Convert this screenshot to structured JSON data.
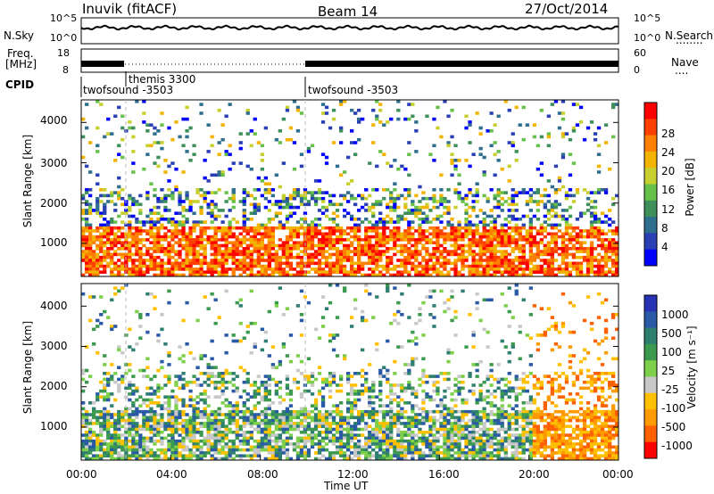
{
  "header": {
    "station": "Inuvik (fitACF)",
    "beam": "Beam 14",
    "date": "27/Oct/2014"
  },
  "nsky_panel": {
    "left_label": "N.Sky",
    "left_ticks": [
      "10^5",
      "10^0"
    ],
    "right_ticks": [
      "10^5",
      "10^0"
    ],
    "right_label": "N.Search",
    "right_legend": "........"
  },
  "freq_panel": {
    "left_label_1": "Freq.",
    "left_label_2": "[MHz]",
    "left_ticks": [
      "18",
      "8"
    ],
    "right_ticks": [
      "60",
      "0"
    ],
    "right_label": "Nave",
    "right_legend": "...."
  },
  "cpid_panel": {
    "label": "CPID",
    "entries": [
      {
        "text": "twofsound -3503",
        "start": "00:00"
      },
      {
        "text": "themis 3300",
        "start": "02:00"
      },
      {
        "text": "twofsound -3503",
        "start": "10:00"
      }
    ]
  },
  "chart_data": [
    {
      "type": "heatmap",
      "name": "power",
      "ylabel": "Slant Range [km]",
      "ylim": [
        180,
        4560
      ],
      "yticks": [
        "1000",
        "2000",
        "3000",
        "4000"
      ],
      "xlim_hours": [
        0,
        24
      ],
      "colorbar": {
        "label": "Power [dB]",
        "ticks": [
          "28",
          "24",
          "20",
          "16",
          "12",
          "8",
          "4"
        ],
        "colors": [
          "#0000ff",
          "#2a3fb4",
          "#2f6e8e",
          "#3f8f5a",
          "#67c04a",
          "#c8d030",
          "#f2b400",
          "#ff8000",
          "#ff4000",
          "#ff0000"
        ]
      }
    },
    {
      "type": "heatmap",
      "name": "velocity",
      "ylabel": "Slant Range [km]",
      "ylim": [
        180,
        4560
      ],
      "yticks": [
        "1000",
        "2000",
        "3000",
        "4000"
      ],
      "xlabel": "Time UT",
      "xticks": [
        "00:00",
        "04:00",
        "08:00",
        "12:00",
        "16:00",
        "20:00",
        "00:00"
      ],
      "colorbar": {
        "label": "Velocity [m s⁻¹]",
        "ticks": [
          "1000",
          "500",
          "100",
          "25",
          "-25",
          "-100",
          "-500",
          "-1000"
        ],
        "colors": [
          "#2832b4",
          "#2a5aa6",
          "#2e7f70",
          "#3c9a4e",
          "#7ed04a",
          "#c8c8c8",
          "#ffc000",
          "#ff9a00",
          "#ff6000",
          "#ff0000"
        ]
      }
    }
  ]
}
